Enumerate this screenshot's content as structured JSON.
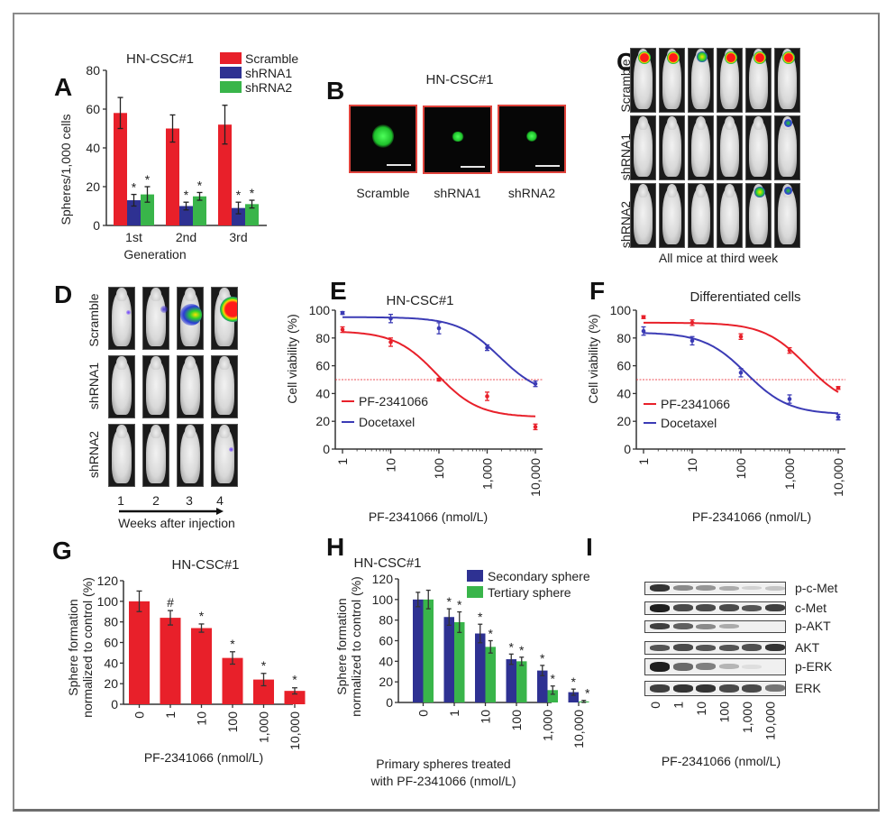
{
  "figure": {
    "panel_letters": [
      "A",
      "B",
      "C",
      "D",
      "E",
      "F",
      "G",
      "H",
      "I"
    ]
  },
  "panelA": {
    "title": "HN-CSC#1",
    "legend": [
      "Scramble",
      "shRNA1",
      "shRNA2"
    ],
    "colors": {
      "Scramble": "#e8202a",
      "shRNA1": "#2e3192",
      "shRNA2": "#39b54a"
    },
    "ylabel": "Spheres/1,000 cells",
    "xlabel": "Generation",
    "yticks": [
      "0",
      "20",
      "40",
      "60",
      "80"
    ]
  },
  "panelB": {
    "title": "HN-CSC#1",
    "images": [
      {
        "label": "Scramble",
        "size": "large"
      },
      {
        "label": "shRNA1",
        "size": "small"
      },
      {
        "label": "shRNA2",
        "size": "small"
      }
    ]
  },
  "panelC": {
    "rows": [
      {
        "label": "Scramble",
        "signals": [
          "high",
          "high",
          "medium",
          "high",
          "high",
          "high"
        ]
      },
      {
        "label": "shRNA1",
        "signals": [
          "none",
          "none",
          "none",
          "none",
          "none",
          "low"
        ]
      },
      {
        "label": "shRNA2",
        "signals": [
          "none",
          "none",
          "none",
          "none",
          "medium",
          "low"
        ]
      }
    ],
    "caption": "All mice at third week"
  },
  "panelD": {
    "rows": [
      {
        "label": "Scramble",
        "signals": [
          "trace",
          "low",
          "medium",
          "high"
        ]
      },
      {
        "label": "shRNA1",
        "signals": [
          "none",
          "none",
          "none",
          "none"
        ]
      },
      {
        "label": "shRNA2",
        "signals": [
          "none",
          "none",
          "none",
          "trace"
        ]
      }
    ],
    "weeks": [
      "1",
      "2",
      "3",
      "4"
    ],
    "caption": "Weeks after injection"
  },
  "panelE": {
    "title": "HN-CSC#1",
    "ylabel": "Cell viability (%)",
    "xlabel": "PF-2341066 (nmol/L)",
    "legend": [
      "PF-2341066",
      "Docetaxel"
    ],
    "yticks": [
      "0",
      "20",
      "40",
      "60",
      "80",
      "100"
    ],
    "xticks": [
      "1",
      "10",
      "100",
      "1,000",
      "10,000"
    ]
  },
  "panelF": {
    "title": "Differentiated cells",
    "ylabel": "Cell viability (%)",
    "xlabel": "PF-2341066 (nmol/L)",
    "legend": [
      "PF-2341066",
      "Docetaxel"
    ],
    "yticks": [
      "0",
      "20",
      "40",
      "60",
      "80",
      "100"
    ],
    "xticks": [
      "1",
      "10",
      "100",
      "1,000",
      "10,000"
    ]
  },
  "panelG": {
    "title": "HN-CSC#1",
    "ylabel_line1": "Sphere formation",
    "ylabel_line2": "normalized to control (%)",
    "xlabel": "PF-2341066 (nmol/L)",
    "yticks": [
      "0",
      "20",
      "40",
      "60",
      "80",
      "100",
      "120"
    ],
    "xticks": [
      "0",
      "1",
      "10",
      "100",
      "1,000",
      "10,000"
    ]
  },
  "panelH": {
    "title": "HN-CSC#1",
    "ylabel_line1": "Sphere formation",
    "ylabel_line2": "normalized to control (%)",
    "xlabel_line1": "Primary spheres treated",
    "xlabel_line2": "with PF-2341066 (nmol/L)",
    "legend": [
      "Secondary sphere",
      "Tertiary sphere"
    ],
    "yticks": [
      "0",
      "20",
      "40",
      "60",
      "80",
      "100",
      "120"
    ],
    "xticks": [
      "0",
      "1",
      "10",
      "100",
      "1,000",
      "10,000"
    ]
  },
  "panelI": {
    "blots": [
      {
        "label": "p-c-Met",
        "intensity": [
          0.85,
          0.45,
          0.4,
          0.3,
          0.12,
          0.18
        ]
      },
      {
        "label": "c-Met",
        "intensity": [
          0.95,
          0.75,
          0.75,
          0.75,
          0.7,
          0.8
        ]
      },
      {
        "label": "p-AKT",
        "intensity": [
          0.8,
          0.65,
          0.45,
          0.3,
          0.0,
          0.0
        ]
      },
      {
        "label": "AKT",
        "intensity": [
          0.7,
          0.75,
          0.7,
          0.7,
          0.72,
          0.85
        ]
      },
      {
        "label": "p-ERK",
        "intensity": [
          0.95,
          0.6,
          0.5,
          0.25,
          0.06,
          0.0
        ]
      },
      {
        "label": "ERK",
        "intensity": [
          0.8,
          0.85,
          0.85,
          0.75,
          0.75,
          0.55
        ]
      }
    ],
    "xticks": [
      "0",
      "1",
      "10",
      "100",
      "1,000",
      "10,000"
    ],
    "xlabel": "PF-2341066 (nmol/L)"
  },
  "chart_data": [
    {
      "id": "A",
      "type": "bar",
      "title": "HN-CSC#1",
      "xlabel": "Generation",
      "ylabel": "Spheres/1,000 cells",
      "ylim": [
        0,
        80
      ],
      "categories": [
        "1st",
        "2nd",
        "3rd"
      ],
      "series": [
        {
          "name": "Scramble",
          "values": [
            58,
            50,
            52
          ],
          "errors": [
            8,
            7,
            10
          ],
          "sig": [
            false,
            false,
            false
          ]
        },
        {
          "name": "shRNA1",
          "values": [
            13,
            10,
            9
          ],
          "errors": [
            3,
            2,
            3
          ],
          "sig": [
            true,
            true,
            true
          ]
        },
        {
          "name": "shRNA2",
          "values": [
            16,
            15,
            11
          ],
          "errors": [
            4,
            2,
            2
          ],
          "sig": [
            true,
            true,
            true
          ]
        }
      ],
      "legend_position": "top-right"
    },
    {
      "id": "E",
      "type": "line",
      "title": "HN-CSC#1",
      "xlabel": "PF-2341066 (nmol/L)",
      "ylabel": "Cell viability (%)",
      "xscale": "log",
      "xlim": [
        1,
        10000
      ],
      "ylim": [
        0,
        100
      ],
      "reference_line": 50,
      "x": [
        1,
        10,
        100,
        1000,
        10000
      ],
      "series": [
        {
          "name": "PF-2341066",
          "color": "#e8202a",
          "values": [
            86,
            77,
            50,
            38,
            16
          ],
          "errors": [
            2,
            3,
            1,
            3,
            2
          ],
          "fit": {
            "top": 85,
            "bottom": 23,
            "ic50": 90,
            "hill": 1.0
          }
        },
        {
          "name": "Docetaxel",
          "color": "#3b3bb5",
          "values": [
            98,
            94,
            87,
            73,
            47
          ],
          "errors": [
            1,
            3,
            4,
            2,
            2
          ],
          "fit": {
            "top": 95,
            "bottom": 38,
            "ic50": 1800,
            "hill": 1.0
          }
        }
      ],
      "legend_position": "bottom-left"
    },
    {
      "id": "F",
      "type": "line",
      "title": "Differentiated cells",
      "xlabel": "PF-2341066 (nmol/L)",
      "ylabel": "Cell viability (%)",
      "xscale": "log",
      "xlim": [
        1,
        10000
      ],
      "ylim": [
        0,
        100
      ],
      "reference_line": 50,
      "x": [
        1,
        10,
        100,
        1000,
        10000
      ],
      "series": [
        {
          "name": "PF-2341066",
          "color": "#e8202a",
          "values": [
            95,
            91,
            81,
            71,
            44
          ],
          "errors": [
            1,
            2,
            2,
            2,
            1
          ],
          "fit": {
            "top": 91,
            "bottom": 30,
            "ic50": 2200,
            "hill": 1.0
          }
        },
        {
          "name": "Docetaxel",
          "color": "#3b3bb5",
          "values": [
            85,
            78,
            55,
            36,
            23
          ],
          "errors": [
            3,
            3,
            3,
            3,
            2
          ],
          "fit": {
            "top": 84,
            "bottom": 25,
            "ic50": 130,
            "hill": 1.0
          }
        }
      ],
      "legend_position": "bottom-left"
    },
    {
      "id": "G",
      "type": "bar",
      "title": "HN-CSC#1",
      "xlabel": "PF-2341066 (nmol/L)",
      "ylabel": "Sphere formation normalized to control (%)",
      "ylim": [
        0,
        120
      ],
      "categories": [
        "0",
        "1",
        "10",
        "100",
        "1,000",
        "10,000"
      ],
      "values": [
        100,
        84,
        74,
        45,
        24,
        13
      ],
      "errors": [
        10,
        7,
        4,
        6,
        6,
        3
      ],
      "annotations": [
        "",
        "#",
        "*",
        "*",
        "*",
        "*"
      ]
    },
    {
      "id": "H",
      "type": "bar",
      "title": "HN-CSC#1",
      "xlabel": "Primary spheres treated with PF-2341066 (nmol/L)",
      "ylabel": "Sphere formation normalized to control (%)",
      "ylim": [
        0,
        120
      ],
      "categories": [
        "0",
        "1",
        "10",
        "100",
        "1,000",
        "10,000"
      ],
      "series": [
        {
          "name": "Secondary sphere",
          "color": "#2e3192",
          "values": [
            100,
            83,
            67,
            42,
            31,
            10
          ],
          "errors": [
            7,
            8,
            9,
            5,
            5,
            3
          ],
          "annotations": [
            "",
            "*",
            "*",
            "*",
            "*",
            "*"
          ]
        },
        {
          "name": "Tertiary sphere",
          "color": "#39b54a",
          "values": [
            100,
            78,
            54,
            40,
            12,
            1
          ],
          "errors": [
            9,
            10,
            6,
            4,
            4,
            1
          ],
          "annotations": [
            "",
            "*",
            "*",
            "*",
            "*",
            "*"
          ]
        }
      ],
      "legend_position": "top-right"
    }
  ]
}
